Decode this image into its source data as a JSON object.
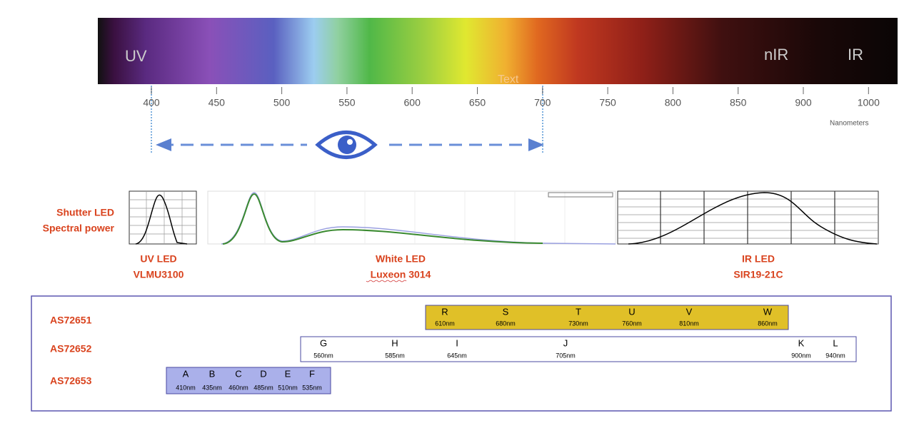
{
  "spectrum": {
    "labels": [
      "UV",
      "nIR",
      "IR"
    ],
    "overlay": "Text",
    "ticks": [
      "400",
      "450",
      "500",
      "550",
      "600",
      "650",
      "700",
      "750",
      "800",
      "850",
      "900",
      "1000"
    ],
    "unit": "Nanometers"
  },
  "led_title": [
    "Shutter LED",
    "Spectral power"
  ],
  "leds": [
    {
      "name": "UV LED",
      "model": "VLMU3100"
    },
    {
      "name": "White LED",
      "model": "Luxeon 3014"
    },
    {
      "name": "IR LED",
      "model": "SIR19-21C"
    }
  ],
  "sensors": [
    {
      "name": "AS72651",
      "channels": [
        {
          "letter": "R",
          "wavelength": "610nm"
        },
        {
          "letter": "S",
          "wavelength": "680nm"
        },
        {
          "letter": "T",
          "wavelength": "730nm"
        },
        {
          "letter": "U",
          "wavelength": "760nm"
        },
        {
          "letter": "V",
          "wavelength": "810nm"
        },
        {
          "letter": "W",
          "wavelength": "860nm"
        }
      ]
    },
    {
      "name": "AS72652",
      "channels": [
        {
          "letter": "G",
          "wavelength": "560nm"
        },
        {
          "letter": "H",
          "wavelength": "585nm"
        },
        {
          "letter": "I",
          "wavelength": "645nm"
        },
        {
          "letter": "J",
          "wavelength": "705nm"
        },
        {
          "letter": "K",
          "wavelength": "900nm"
        },
        {
          "letter": "L",
          "wavelength": "940nm"
        }
      ]
    },
    {
      "name": "AS72653",
      "channels": [
        {
          "letter": "A",
          "wavelength": "410nm"
        },
        {
          "letter": "B",
          "wavelength": "435nm"
        },
        {
          "letter": "C",
          "wavelength": "460nm"
        },
        {
          "letter": "D",
          "wavelength": "485nm"
        },
        {
          "letter": "E",
          "wavelength": "510nm"
        },
        {
          "letter": "F",
          "wavelength": "535nm"
        }
      ]
    }
  ]
}
